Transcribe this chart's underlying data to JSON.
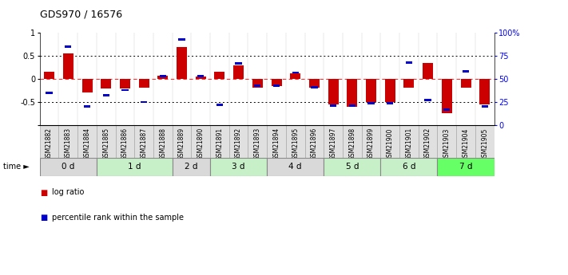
{
  "title": "GDS970 / 16576",
  "samples": [
    "GSM21882",
    "GSM21883",
    "GSM21884",
    "GSM21885",
    "GSM21886",
    "GSM21887",
    "GSM21888",
    "GSM21889",
    "GSM21890",
    "GSM21891",
    "GSM21892",
    "GSM21893",
    "GSM21894",
    "GSM21895",
    "GSM21896",
    "GSM21897",
    "GSM21898",
    "GSM21899",
    "GSM21900",
    "GSM21901",
    "GSM21902",
    "GSM21903",
    "GSM21904",
    "GSM21905"
  ],
  "log_ratio": [
    0.15,
    0.55,
    -0.3,
    -0.2,
    -0.2,
    -0.18,
    0.07,
    0.7,
    0.05,
    0.15,
    0.3,
    -0.18,
    -0.15,
    0.12,
    -0.18,
    -0.55,
    -0.6,
    -0.5,
    -0.5,
    -0.18,
    0.35,
    -0.75,
    -0.18,
    -0.55
  ],
  "percentile": [
    35,
    85,
    20,
    32,
    38,
    25,
    53,
    93,
    53,
    22,
    67,
    43,
    43,
    57,
    41,
    21,
    21,
    24,
    24,
    68,
    27,
    17,
    58,
    20
  ],
  "time_groups": {
    "0 d": [
      0,
      1,
      2
    ],
    "1 d": [
      3,
      4,
      5,
      6
    ],
    "2 d": [
      7,
      8
    ],
    "3 d": [
      9,
      10,
      11
    ],
    "4 d": [
      12,
      13,
      14
    ],
    "5 d": [
      15,
      16,
      17
    ],
    "6 d": [
      18,
      19,
      20
    ],
    "7 d": [
      21,
      22,
      23
    ]
  },
  "group_colors": [
    "#d9d9d9",
    "#c8f0c8",
    "#d9d9d9",
    "#c8f0c8",
    "#d9d9d9",
    "#c8f0c8",
    "#c8f0c8",
    "#66ff66"
  ],
  "bar_color_red": "#cc0000",
  "bar_color_blue": "#0000cc",
  "ylim": [
    -1,
    1
  ],
  "yticks_left": [
    -1,
    -0.5,
    0,
    0.5,
    1
  ],
  "yticks_right": [
    0,
    25,
    50,
    75,
    100
  ],
  "dotted_lines": [
    -0.5,
    0.5
  ],
  "red_dashed_line": 0.0,
  "background_color": "#ffffff",
  "cell_bg": "#e0e0e0",
  "legend_red_label": "log ratio",
  "legend_blue_label": "percentile rank within the sample",
  "time_label": "time"
}
